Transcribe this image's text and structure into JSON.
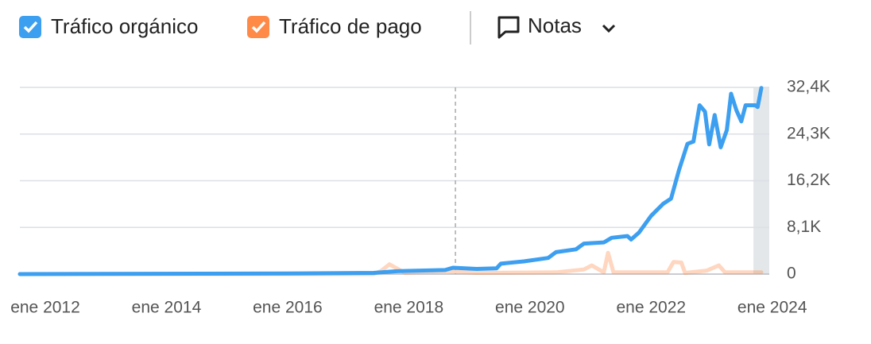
{
  "toolbar": {
    "notes": "Notas"
  },
  "chart_data": {
    "type": "line",
    "series": [
      {
        "name": "Tráfico orgánico",
        "color": "#3d9ff0",
        "x": [
          2011.58,
          2015.97,
          2017.42,
          2017.8,
          2018.6,
          2018.73,
          2019.12,
          2019.45,
          2019.52,
          2019.9,
          2020.3,
          2020.43,
          2020.76,
          2020.89,
          2021.22,
          2021.35,
          2021.61,
          2021.67,
          2021.8,
          2022.0,
          2022.2,
          2022.33,
          2022.46,
          2022.6,
          2022.7,
          2022.8,
          2022.89,
          2022.96,
          2023.05,
          2023.15,
          2023.25,
          2023.32,
          2023.41,
          2023.49,
          2023.56,
          2023.72,
          2023.76,
          2023.82
        ],
        "values": [
          0,
          100,
          200,
          500,
          700,
          1100,
          900,
          1000,
          1800,
          2200,
          2800,
          3800,
          4300,
          5300,
          5500,
          6300,
          6600,
          6000,
          7200,
          10100,
          12200,
          13100,
          18000,
          22600,
          23000,
          29300,
          28200,
          22500,
          27600,
          22000,
          25000,
          31300,
          28400,
          26500,
          29300,
          29300,
          29000,
          32300
        ]
      },
      {
        "name": "Tráfico de pago",
        "color": "#ff8a48",
        "x": [
          2011.58,
          2017.42,
          2017.55,
          2017.68,
          2017.8,
          2017.94,
          2018.6,
          2019.12,
          2020.43,
          2020.89,
          2021.02,
          2021.22,
          2021.29,
          2021.38,
          2022.27,
          2022.37,
          2022.5,
          2022.56,
          2022.92,
          2023.12,
          2023.22,
          2023.82
        ],
        "values": [
          0,
          0,
          600,
          1700,
          1000,
          200,
          500,
          200,
          300,
          800,
          1500,
          300,
          3700,
          300,
          300,
          2100,
          2000,
          200,
          600,
          1500,
          300,
          300
        ]
      }
    ],
    "xlim": [
      2011.58,
      2023.82
    ],
    "xticks": [
      {
        "value": 2012,
        "label": "ene 2012"
      },
      {
        "value": 2014,
        "label": "ene 2014"
      },
      {
        "value": 2016,
        "label": "ene 2016"
      },
      {
        "value": 2018,
        "label": "ene 2018"
      },
      {
        "value": 2020,
        "label": "ene 2020"
      },
      {
        "value": 2022,
        "label": "ene 2022"
      },
      {
        "value": 2024,
        "label": "ene 2024"
      }
    ],
    "ylim": [
      0,
      32400
    ],
    "yticks": [
      0,
      {
        "value": 8100,
        "label": "8,1K"
      },
      {
        "value": 16200,
        "label": "16,2K"
      },
      {
        "value": 24300,
        "label": "24,3K"
      },
      {
        "value": 32400,
        "label": "32,4K"
      }
    ],
    "note_x": 2018.77,
    "grid": true
  }
}
